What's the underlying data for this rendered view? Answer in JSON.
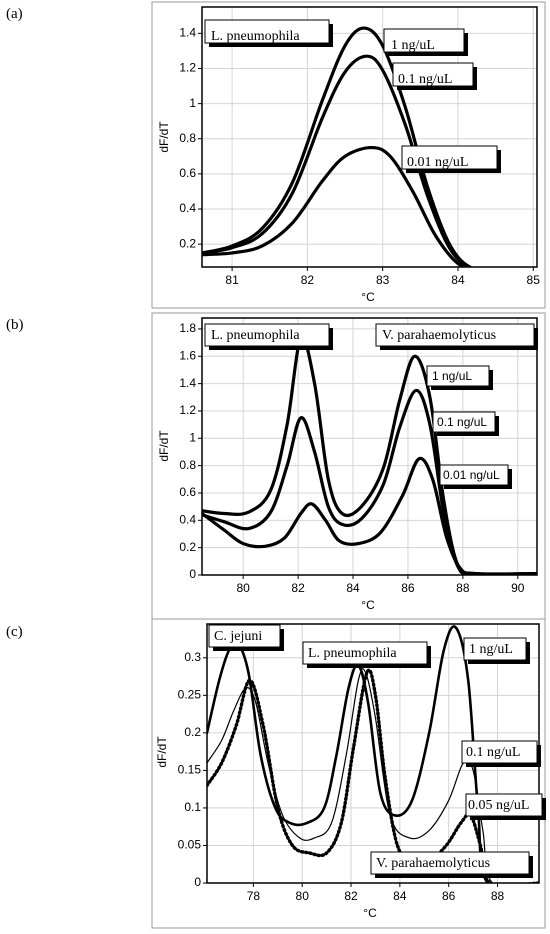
{
  "panel_labels": [
    "(a)",
    "(b)",
    "(c)"
  ],
  "chart_data": [
    {
      "type": "line",
      "panel": "(a)",
      "xlabel": "°C",
      "ylabel": "dF/dT",
      "xlim": [
        80.6,
        85.05
      ],
      "ylim": [
        0.07,
        1.55
      ],
      "xticks": [
        81,
        82,
        83,
        84,
        85
      ],
      "yticks": [
        0.2,
        0.4,
        0.6,
        0.8,
        1,
        1.2,
        1.4
      ],
      "ytick_labels": [
        "0.2",
        "0.4",
        "0.6",
        "0.8",
        "1",
        "1.2",
        "1.4"
      ],
      "grid": true,
      "series": [
        {
          "name": "1 ng/uL",
          "style": "solid",
          "width": 3.2,
          "x": [
            80.6,
            81.0,
            81.4,
            81.8,
            82.2,
            82.5,
            82.75,
            83.0,
            83.3,
            83.6,
            83.9,
            84.2,
            84.6,
            85.05
          ],
          "y": [
            0.15,
            0.19,
            0.29,
            0.55,
            1.02,
            1.33,
            1.43,
            1.33,
            0.98,
            0.52,
            0.19,
            0.06,
            0.04,
            0.04
          ]
        },
        {
          "name": "0.1 ng/uL",
          "style": "solid",
          "width": 3.2,
          "x": [
            80.6,
            81.0,
            81.4,
            81.8,
            82.2,
            82.5,
            82.78,
            83.0,
            83.3,
            83.6,
            83.9,
            84.2,
            84.6,
            85.05
          ],
          "y": [
            0.15,
            0.18,
            0.26,
            0.49,
            0.92,
            1.18,
            1.27,
            1.19,
            0.88,
            0.47,
            0.17,
            0.06,
            0.04,
            0.04
          ]
        },
        {
          "name": "0.01 ng/uL",
          "style": "solid",
          "width": 3.2,
          "x": [
            80.6,
            81.0,
            81.4,
            81.8,
            82.2,
            82.5,
            82.85,
            83.1,
            83.4,
            83.7,
            84.0,
            84.3,
            84.6,
            85.05
          ],
          "y": [
            0.14,
            0.15,
            0.19,
            0.32,
            0.56,
            0.7,
            0.75,
            0.7,
            0.5,
            0.25,
            0.09,
            0.05,
            0.04,
            0.04
          ]
        }
      ],
      "annotations": [
        "L. pneumophila",
        "1 ng/uL",
        "0.1 ng/uL",
        "0.01 ng/uL"
      ]
    },
    {
      "type": "line",
      "panel": "(b)",
      "xlabel": "°C",
      "ylabel": "dF/dT",
      "xlim": [
        78.5,
        90.7
      ],
      "ylim": [
        0,
        1.88
      ],
      "xticks": [
        80,
        82,
        84,
        86,
        88,
        90
      ],
      "yticks": [
        0,
        0.2,
        0.4,
        0.6,
        0.8,
        1,
        1.2,
        1.4,
        1.6,
        1.8
      ],
      "ytick_labels": [
        "0",
        "0.2",
        "0.4",
        "0.6",
        "0.8",
        "1",
        "1.2",
        "1.4",
        "1.6",
        "1.8"
      ],
      "grid": true,
      "series": [
        {
          "name": "1 ng/uL",
          "style": "solid",
          "width": 3.2,
          "x": [
            78.5,
            79.3,
            80.2,
            81.0,
            81.6,
            82.1,
            82.6,
            83.1,
            83.6,
            84.3,
            85.1,
            85.7,
            86.25,
            86.8,
            87.3,
            87.8,
            88.4,
            90.7
          ],
          "y": [
            0.47,
            0.45,
            0.46,
            0.62,
            1.1,
            1.73,
            1.4,
            0.7,
            0.45,
            0.5,
            0.78,
            1.28,
            1.6,
            1.3,
            0.55,
            0.08,
            0.01,
            0.01
          ]
        },
        {
          "name": "0.1 ng/uL",
          "style": "solid",
          "width": 3.2,
          "x": [
            78.5,
            79.3,
            80.2,
            81.0,
            81.6,
            82.1,
            82.6,
            83.1,
            83.6,
            84.3,
            85.1,
            85.7,
            86.3,
            86.8,
            87.3,
            87.8,
            88.4,
            90.7
          ],
          "y": [
            0.44,
            0.39,
            0.34,
            0.46,
            0.8,
            1.15,
            0.9,
            0.5,
            0.37,
            0.41,
            0.66,
            1.08,
            1.35,
            1.1,
            0.46,
            0.07,
            0.01,
            0.01
          ]
        },
        {
          "name": "0.01 ng/uL",
          "style": "solid",
          "width": 3.2,
          "x": [
            78.5,
            79.3,
            80.0,
            80.8,
            81.5,
            82.1,
            82.5,
            83.0,
            83.5,
            84.2,
            85.0,
            85.8,
            86.4,
            86.9,
            87.4,
            87.9,
            88.5,
            90.7
          ],
          "y": [
            0.45,
            0.33,
            0.23,
            0.21,
            0.27,
            0.45,
            0.52,
            0.4,
            0.25,
            0.23,
            0.31,
            0.58,
            0.85,
            0.7,
            0.28,
            0.05,
            0.01,
            0.01
          ]
        }
      ],
      "annotations": [
        "L. pneumophila",
        "V. parahaemolyticus",
        "1 ng/uL",
        "0.1 ng/uL",
        "0.01 ng/uL"
      ]
    },
    {
      "type": "line",
      "panel": "(c)",
      "xlabel": "°C",
      "ylabel": "dF/dT",
      "xlim": [
        76.1,
        89.7
      ],
      "ylim": [
        0,
        0.345
      ],
      "xticks": [
        78,
        80,
        82,
        84,
        86,
        88
      ],
      "yticks": [
        0,
        0.05,
        0.1,
        0.15,
        0.2,
        0.25,
        0.3
      ],
      "ytick_labels": [
        "0",
        "0.05",
        "0.1",
        "0.15",
        "0.2",
        "0.25",
        "0.3"
      ],
      "grid": true,
      "series": [
        {
          "name": "1 ng/uL",
          "style": "solid",
          "width": 2.6,
          "x": [
            76.1,
            76.6,
            77.0,
            77.35,
            77.8,
            78.3,
            78.9,
            79.5,
            80.2,
            80.9,
            81.4,
            81.9,
            82.3,
            82.7,
            83.2,
            83.8,
            84.5,
            85.2,
            85.8,
            86.3,
            86.8,
            87.2,
            87.6,
            89.7
          ],
          "y": [
            0.2,
            0.27,
            0.31,
            0.32,
            0.28,
            0.17,
            0.1,
            0.08,
            0.08,
            0.1,
            0.17,
            0.26,
            0.29,
            0.24,
            0.12,
            0.09,
            0.11,
            0.2,
            0.31,
            0.34,
            0.27,
            0.1,
            0.0,
            0.0
          ]
        },
        {
          "name": "0.1 ng/uL",
          "style": "solid",
          "width": 1.2,
          "x": [
            76.1,
            76.7,
            77.2,
            77.7,
            78.1,
            78.6,
            79.2,
            79.9,
            80.5,
            81.2,
            81.8,
            82.3,
            82.6,
            83.0,
            83.6,
            84.4,
            85.2,
            86.0,
            86.6,
            87.0,
            87.4,
            87.8,
            89.7
          ],
          "y": [
            0.16,
            0.19,
            0.23,
            0.26,
            0.24,
            0.16,
            0.09,
            0.06,
            0.06,
            0.08,
            0.17,
            0.27,
            0.28,
            0.22,
            0.09,
            0.06,
            0.07,
            0.11,
            0.16,
            0.15,
            0.07,
            0.0,
            0.0
          ]
        },
        {
          "name": "0.05 ng/uL",
          "style": "dotted",
          "width": 3.4,
          "x": [
            76.1,
            76.7,
            77.3,
            77.85,
            78.4,
            79.0,
            79.6,
            80.3,
            81.0,
            81.6,
            82.1,
            82.65,
            83.0,
            83.4,
            83.9,
            84.5,
            85.2,
            85.9,
            86.5,
            86.9,
            87.3,
            87.7,
            89.7
          ],
          "y": [
            0.13,
            0.16,
            0.21,
            0.27,
            0.21,
            0.1,
            0.05,
            0.04,
            0.04,
            0.08,
            0.18,
            0.28,
            0.25,
            0.14,
            0.05,
            0.03,
            0.03,
            0.05,
            0.08,
            0.09,
            0.05,
            0.0,
            0.0
          ]
        }
      ],
      "annotations": [
        "C. jejuni",
        "L. pneumophila",
        "1 ng/uL",
        "0.1 ng/uL",
        "0.05 ng/uL",
        "V. parahaemolyticus"
      ]
    }
  ]
}
